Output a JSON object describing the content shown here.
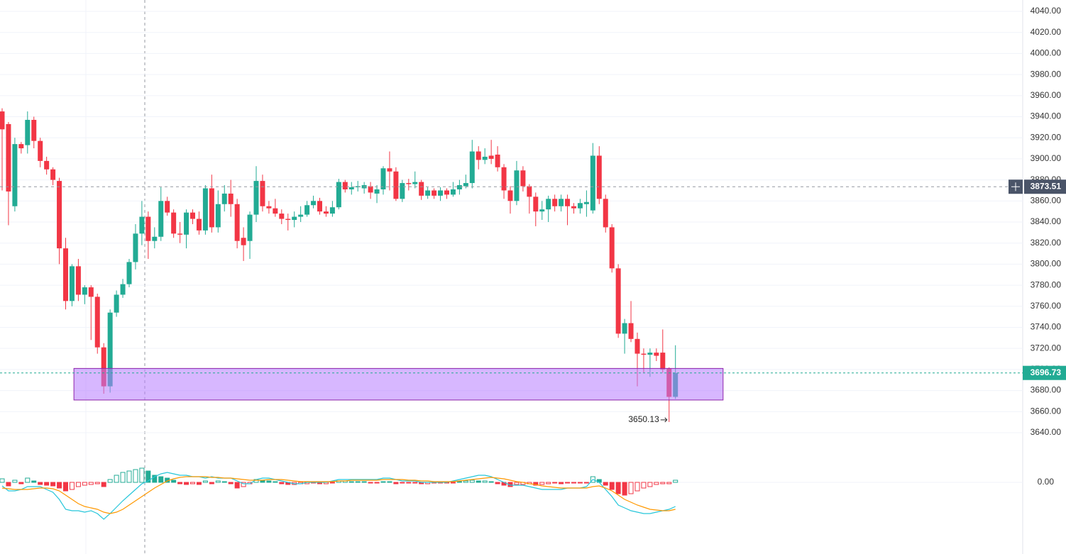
{
  "chart_data": {
    "type": "candlestick",
    "up_color": "#22ab94",
    "down_color": "#f23645",
    "ylim": [
      3626.5,
      4050.8
    ],
    "yticks": [
      {
        "value": 3640,
        "label": "3640.00"
      },
      {
        "value": 3660,
        "label": "3660.00"
      },
      {
        "value": 3680,
        "label": "3680.00"
      },
      {
        "value": 3700,
        "label": "3700.00"
      },
      {
        "value": 3720,
        "label": "3720.00"
      },
      {
        "value": 3740,
        "label": "3740.00"
      },
      {
        "value": 3760,
        "label": "3760.00"
      },
      {
        "value": 3780,
        "label": "3780.00"
      },
      {
        "value": 3800,
        "label": "3800.00"
      },
      {
        "value": 3820,
        "label": "3820.00"
      },
      {
        "value": 3840,
        "label": "3840.00"
      },
      {
        "value": 3860,
        "label": "3860.00"
      },
      {
        "value": 3880,
        "label": "3880.00"
      },
      {
        "value": 3900,
        "label": "3900.00"
      },
      {
        "value": 3920,
        "label": "3920.00"
      },
      {
        "value": 3940,
        "label": "3940.00"
      },
      {
        "value": 3960,
        "label": "3960.00"
      },
      {
        "value": 3980,
        "label": "3980.00"
      },
      {
        "value": 4000,
        "label": "4000.00"
      },
      {
        "value": 4020,
        "label": "4020.00"
      },
      {
        "value": 4040,
        "label": "4040.00"
      }
    ],
    "grid": true,
    "crosshair_price": 3873.51,
    "zone": {
      "ylim": [
        3671,
        3701
      ],
      "x": [
        11.3,
        113.5
      ],
      "color": "#b77cff"
    },
    "ohlc": [
      [
        3945,
        3948,
        3870,
        3928
      ],
      [
        3933,
        3935,
        3837,
        3869
      ],
      [
        3855,
        3920,
        3850,
        3914
      ],
      [
        3914,
        3916,
        3905,
        3910
      ],
      [
        3913,
        3945,
        3905,
        3937
      ],
      [
        3937,
        3940,
        3910,
        3917
      ],
      [
        3917,
        3920,
        3892,
        3898
      ],
      [
        3898,
        3902,
        3885,
        3890
      ],
      [
        3890,
        3892,
        3875,
        3880
      ],
      [
        3879,
        3882,
        3800,
        3815
      ],
      [
        3815,
        3825,
        3757,
        3765
      ],
      [
        3765,
        3800,
        3760,
        3798
      ],
      [
        3798,
        3805,
        3765,
        3771
      ],
      [
        3771,
        3780,
        3762,
        3778
      ],
      [
        3778,
        3780,
        3728,
        3769
      ],
      [
        3769,
        3772,
        3715,
        3721
      ],
      [
        3721,
        3725,
        3677,
        3684
      ],
      [
        3684,
        3757,
        3678,
        3754
      ],
      [
        3754,
        3775,
        3750,
        3771
      ],
      [
        3771,
        3786,
        3768,
        3781
      ],
      [
        3781,
        3805,
        3778,
        3802
      ],
      [
        3802,
        3838,
        3795,
        3829
      ],
      [
        3829,
        3860,
        3818,
        3845
      ],
      [
        3845,
        3850,
        3805,
        3822
      ],
      [
        3822,
        3835,
        3815,
        3826
      ],
      [
        3826,
        3873,
        3822,
        3860
      ],
      [
        3860,
        3864,
        3846,
        3849
      ],
      [
        3849,
        3852,
        3825,
        3829
      ],
      [
        3829,
        3840,
        3820,
        3828
      ],
      [
        3828,
        3852,
        3815,
        3849
      ],
      [
        3849,
        3852,
        3838,
        3843
      ],
      [
        3843,
        3850,
        3828,
        3832
      ],
      [
        3832,
        3875,
        3828,
        3872
      ],
      [
        3872,
        3885,
        3830,
        3835
      ],
      [
        3835,
        3870,
        3830,
        3857
      ],
      [
        3857,
        3875,
        3850,
        3867
      ],
      [
        3867,
        3880,
        3845,
        3857
      ],
      [
        3857,
        3862,
        3815,
        3822
      ],
      [
        3825,
        3835,
        3803,
        3818
      ],
      [
        3822,
        3850,
        3805,
        3847
      ],
      [
        3847,
        3893,
        3840,
        3879
      ],
      [
        3879,
        3885,
        3850,
        3855
      ],
      [
        3855,
        3860,
        3848,
        3853
      ],
      [
        3853,
        3862,
        3845,
        3848
      ],
      [
        3848,
        3852,
        3838,
        3843
      ],
      [
        3843,
        3848,
        3832,
        3842
      ],
      [
        3842,
        3850,
        3835,
        3845
      ],
      [
        3845,
        3855,
        3840,
        3847
      ],
      [
        3847,
        3860,
        3845,
        3856
      ],
      [
        3856,
        3865,
        3853,
        3860
      ],
      [
        3860,
        3863,
        3847,
        3850
      ],
      [
        3850,
        3855,
        3845,
        3848
      ],
      [
        3848,
        3860,
        3845,
        3854
      ],
      [
        3854,
        3881,
        3852,
        3878
      ],
      [
        3878,
        3880,
        3868,
        3871
      ],
      [
        3871,
        3878,
        3866,
        3873
      ],
      [
        3873,
        3879,
        3869,
        3874
      ],
      [
        3872,
        3878,
        3867,
        3875
      ],
      [
        3874,
        3878,
        3862,
        3868
      ],
      [
        3867,
        3875,
        3858,
        3871
      ],
      [
        3871,
        3893,
        3866,
        3891
      ],
      [
        3891,
        3907,
        3870,
        3888
      ],
      [
        3888,
        3892,
        3860,
        3862
      ],
      [
        3862,
        3880,
        3859,
        3877
      ],
      [
        3877,
        3881,
        3870,
        3876
      ],
      [
        3876,
        3888,
        3872,
        3878
      ],
      [
        3878,
        3880,
        3861,
        3865
      ],
      [
        3865,
        3873,
        3862,
        3870
      ],
      [
        3870,
        3872,
        3862,
        3865
      ],
      [
        3865,
        3873,
        3860,
        3870
      ],
      [
        3870,
        3872,
        3862,
        3866
      ],
      [
        3866,
        3878,
        3864,
        3871
      ],
      [
        3871,
        3880,
        3866,
        3875
      ],
      [
        3874,
        3885,
        3872,
        3877
      ],
      [
        3877,
        3918,
        3872,
        3907
      ],
      [
        3907,
        3912,
        3890,
        3899
      ],
      [
        3899,
        3910,
        3895,
        3902
      ],
      [
        3903,
        3918,
        3895,
        3900
      ],
      [
        3904,
        3912,
        3888,
        3892
      ],
      [
        3892,
        3895,
        3862,
        3870
      ],
      [
        3870,
        3874,
        3848,
        3860
      ],
      [
        3860,
        3898,
        3856,
        3889
      ],
      [
        3889,
        3893,
        3869,
        3874
      ],
      [
        3874,
        3876,
        3848,
        3864
      ],
      [
        3864,
        3868,
        3836,
        3850
      ],
      [
        3850,
        3860,
        3842,
        3852
      ],
      [
        3852,
        3865,
        3840,
        3862
      ],
      [
        3862,
        3866,
        3850,
        3855
      ],
      [
        3855,
        3866,
        3850,
        3862
      ],
      [
        3862,
        3866,
        3837,
        3855
      ],
      [
        3855,
        3858,
        3848,
        3853
      ],
      [
        3853,
        3862,
        3848,
        3858
      ],
      [
        3857,
        3870,
        3845,
        3859
      ],
      [
        3851,
        3915,
        3848,
        3903
      ],
      [
        3903,
        3912,
        3857,
        3862
      ],
      [
        3862,
        3866,
        3830,
        3835
      ],
      [
        3835,
        3838,
        3792,
        3796
      ],
      [
        3796,
        3800,
        3730,
        3734
      ],
      [
        3734,
        3748,
        3715,
        3744
      ],
      [
        3744,
        3765,
        3726,
        3729
      ],
      [
        3729,
        3735,
        3684,
        3715
      ],
      [
        3715,
        3720,
        3697,
        3714
      ],
      [
        3714,
        3720,
        3693,
        3716
      ],
      [
        3716,
        3720,
        3708,
        3713
      ],
      [
        3716,
        3738,
        3697,
        3700
      ],
      [
        3701,
        3702,
        3650.13,
        3674
      ],
      [
        3674,
        3723,
        3672,
        3696.73
      ]
    ],
    "macd": {
      "ylim": [
        -50,
        50
      ],
      "yticks": [
        {
          "value": 0,
          "label": "0.00"
        }
      ],
      "dif_color": "#26c6da",
      "dea_color": "#ff9800",
      "hist": [
        5,
        -5,
        3,
        -2,
        6,
        2,
        -3,
        -4,
        -5,
        -8,
        -12,
        -10,
        -6,
        -4,
        -3,
        -2,
        -6,
        4,
        10,
        14,
        16,
        18,
        20,
        16,
        10,
        8,
        6,
        3,
        -2,
        -3,
        -2,
        -3,
        2,
        -2,
        2,
        1,
        -2,
        -8,
        -6,
        -2,
        4,
        3,
        2,
        1,
        -2,
        -3,
        -3,
        -2,
        -2,
        -1,
        -2,
        -2,
        -1,
        2,
        2,
        1,
        1,
        1,
        -1,
        -1,
        1,
        1,
        -2,
        -1,
        -1,
        -1,
        -2,
        -2,
        -1,
        -1,
        -1,
        -1,
        1,
        2,
        3,
        2,
        2,
        1,
        -2,
        -4,
        -6,
        -3,
        -3,
        -2,
        -4,
        -3,
        -2,
        -1,
        -2,
        -1,
        -1,
        -1,
        -1,
        8,
        4,
        -4,
        -10,
        -16,
        -18,
        -16,
        -12,
        -8,
        -6,
        -3,
        -2,
        -2,
        3
      ],
      "dif": [
        -5,
        -12,
        -12,
        -10,
        -6,
        -6,
        -6,
        -10,
        -14,
        -24,
        -38,
        -40,
        -40,
        -42,
        -40,
        -44,
        -52,
        -44,
        -35,
        -26,
        -18,
        -10,
        -2,
        2,
        8,
        12,
        14,
        12,
        10,
        10,
        8,
        8,
        6,
        8,
        6,
        6,
        6,
        2,
        -2,
        -2,
        4,
        6,
        6,
        4,
        2,
        0,
        -2,
        -2,
        0,
        0,
        0,
        0,
        2,
        4,
        4,
        4,
        4,
        4,
        4,
        4,
        6,
        6,
        4,
        2,
        2,
        2,
        0,
        0,
        0,
        0,
        0,
        2,
        4,
        6,
        8,
        10,
        10,
        8,
        4,
        0,
        -4,
        -4,
        -4,
        -6,
        -8,
        -10,
        -10,
        -10,
        -10,
        -8,
        -8,
        -8,
        -6,
        4,
        0,
        -10,
        -20,
        -32,
        -36,
        -40,
        -42,
        -44,
        -44,
        -42,
        -40,
        -38,
        -34
      ],
      "dea": [
        -8,
        -9,
        -10,
        -10,
        -10,
        -9,
        -8,
        -8,
        -9,
        -12,
        -18,
        -24,
        -30,
        -34,
        -36,
        -38,
        -42,
        -44,
        -42,
        -38,
        -32,
        -26,
        -20,
        -14,
        -8,
        -3,
        2,
        5,
        7,
        8,
        8,
        8,
        8,
        7,
        7,
        6,
        6,
        5,
        4,
        3,
        3,
        3,
        4,
        4,
        4,
        3,
        2,
        1,
        1,
        1,
        1,
        1,
        1,
        2,
        2,
        3,
        3,
        3,
        3,
        3,
        4,
        4,
        4,
        4,
        3,
        3,
        2,
        2,
        1,
        1,
        1,
        1,
        2,
        3,
        4,
        5,
        6,
        7,
        6,
        5,
        3,
        1,
        0,
        -2,
        -3,
        -5,
        -6,
        -7,
        -8,
        -8,
        -8,
        -8,
        -8,
        -6,
        -5,
        -8,
        -12,
        -18,
        -24,
        -28,
        -32,
        -35,
        -38,
        -39,
        -40,
        -40,
        -38
      ]
    }
  }
}
